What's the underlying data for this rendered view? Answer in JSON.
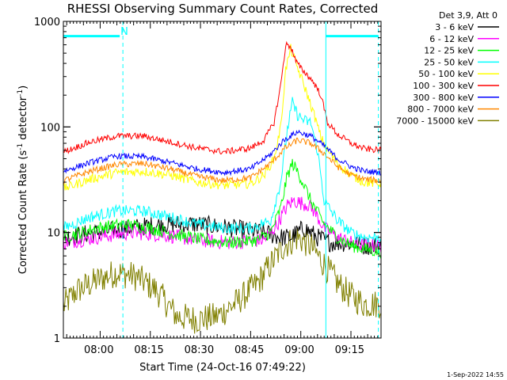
{
  "chart_data": {
    "type": "line",
    "title": "RHESSI Observing Summary Count Rates, Corrected",
    "xlabel": "Start Time (24-Oct-16 07:49:22)",
    "ylabel_main": "Corrected Count Rate (s",
    "ylabel_sup1": "-1",
    "ylabel_mid": " detector",
    "ylabel_sup2": "-1",
    "ylabel_end": ")",
    "yscale": "log",
    "ylim": [
      1,
      1000
    ],
    "xlim_minutes": [
      0,
      95
    ],
    "x_ticks": [
      {
        "label": "08:00",
        "minute": 10.6
      },
      {
        "label": "08:15",
        "minute": 25.6
      },
      {
        "label": "08:30",
        "minute": 40.6
      },
      {
        "label": "08:45",
        "minute": 55.6
      },
      {
        "label": "09:00",
        "minute": 70.6
      },
      {
        "label": "09:15",
        "minute": 85.6
      }
    ],
    "y_ticks": [
      {
        "label": "1",
        "value": 1
      },
      {
        "label": "10",
        "value": 10
      },
      {
        "label": "100",
        "value": 100
      },
      {
        "label": "1000",
        "value": 1000
      }
    ],
    "legend_header": "Det 3,9, Att 0",
    "legend_position": "right",
    "grid": false,
    "flags": {
      "cyan_label": "N",
      "dashed_lines_minute": [
        17.8,
        94.2
      ],
      "solid_line_minute": 78.5
    },
    "footer": "1-Sep-2022 14:55",
    "series": [
      {
        "name": "3 - 6 keV",
        "color": "#000000",
        "x": [
          0,
          10,
          20,
          30,
          40,
          50,
          60,
          65,
          68,
          70,
          72,
          74,
          76,
          80,
          85,
          90,
          95
        ],
        "y": [
          9,
          10,
          11,
          12,
          12,
          11,
          10,
          9,
          9,
          10,
          11,
          10,
          9,
          8,
          8,
          7.5,
          7.5
        ]
      },
      {
        "name": "6 - 12 keV",
        "color": "#ff00ff",
        "x": [
          0,
          10,
          20,
          30,
          40,
          50,
          60,
          64,
          67,
          69,
          71,
          73,
          75,
          78,
          82,
          86,
          90,
          95
        ],
        "y": [
          8,
          9,
          10,
          9.5,
          8.5,
          8,
          8.5,
          12,
          18,
          20,
          19,
          18.5,
          16,
          11,
          9,
          8,
          7.5,
          7.5
        ]
      },
      {
        "name": "12 - 25 keV",
        "color": "#00ff00",
        "x": [
          0,
          10,
          18,
          26,
          34,
          42,
          50,
          58,
          62,
          65,
          67,
          68.5,
          70,
          72,
          74,
          78,
          82,
          86,
          90,
          95
        ],
        "y": [
          9,
          11,
          12,
          11,
          9.5,
          8.5,
          8,
          8.5,
          10,
          17,
          35,
          45,
          38,
          28,
          20,
          12,
          9,
          7.5,
          7,
          6.5
        ]
      },
      {
        "name": "25 - 50 keV",
        "color": "#00ffff",
        "x": [
          0,
          8,
          16,
          24,
          32,
          40,
          48,
          56,
          62,
          65,
          67,
          68.5,
          70,
          72,
          74,
          76,
          78,
          82,
          86,
          90,
          95
        ],
        "y": [
          11,
          14,
          16,
          16,
          14,
          12,
          11,
          11,
          13,
          30,
          95,
          170,
          130,
          115,
          110,
          60,
          20,
          13,
          10,
          9,
          9
        ]
      },
      {
        "name": "50 - 100 keV",
        "color": "#ffff00",
        "x": [
          0,
          8,
          16,
          24,
          32,
          40,
          48,
          56,
          60,
          63,
          65,
          66.5,
          68,
          69.5,
          71,
          73,
          75,
          77,
          79,
          82,
          86,
          90,
          95
        ],
        "y": [
          26,
          32,
          37,
          38,
          35,
          30,
          28,
          29,
          35,
          50,
          100,
          350,
          550,
          400,
          300,
          200,
          130,
          80,
          60,
          45,
          35,
          30,
          29
        ]
      },
      {
        "name": "100 - 300 keV",
        "color": "#ff0000",
        "x": [
          0,
          8,
          16,
          24,
          32,
          40,
          48,
          56,
          60,
          63,
          65,
          66.5,
          68,
          69.5,
          71,
          73,
          75,
          77,
          79,
          82,
          86,
          90,
          95
        ],
        "y": [
          58,
          72,
          82,
          82,
          72,
          63,
          58,
          63,
          75,
          110,
          250,
          600,
          580,
          420,
          360,
          310,
          260,
          200,
          110,
          85,
          70,
          62,
          60
        ]
      },
      {
        "name": "300 - 800 keV",
        "color": "#0000ff",
        "x": [
          0,
          8,
          16,
          24,
          32,
          40,
          48,
          56,
          62,
          66,
          70,
          74,
          78,
          82,
          86,
          90,
          95
        ],
        "y": [
          38,
          46,
          53,
          52,
          46,
          40,
          37,
          40,
          55,
          75,
          90,
          82,
          66,
          50,
          42,
          38,
          37
        ]
      },
      {
        "name": "800 - 7000 keV",
        "color": "#ff8800",
        "x": [
          0,
          8,
          16,
          24,
          32,
          40,
          48,
          56,
          62,
          66,
          70,
          74,
          78,
          82,
          86,
          90,
          95
        ],
        "y": [
          31,
          38,
          44,
          45,
          40,
          34,
          31,
          33,
          45,
          62,
          75,
          70,
          56,
          42,
          35,
          32,
          31
        ]
      },
      {
        "name": "7000 - 15000 keV",
        "color": "#808000",
        "x": [
          0,
          4,
          10,
          16,
          22,
          28,
          34,
          40,
          46,
          52,
          58,
          62,
          66,
          70,
          74,
          78,
          82,
          86,
          90,
          95
        ],
        "y": [
          2,
          2.8,
          3.5,
          4.2,
          3.8,
          2.8,
          1.6,
          1.5,
          1.6,
          2.2,
          3.3,
          5,
          7.5,
          9,
          7.5,
          5,
          3.3,
          2.5,
          2.1,
          2.1
        ]
      }
    ]
  }
}
